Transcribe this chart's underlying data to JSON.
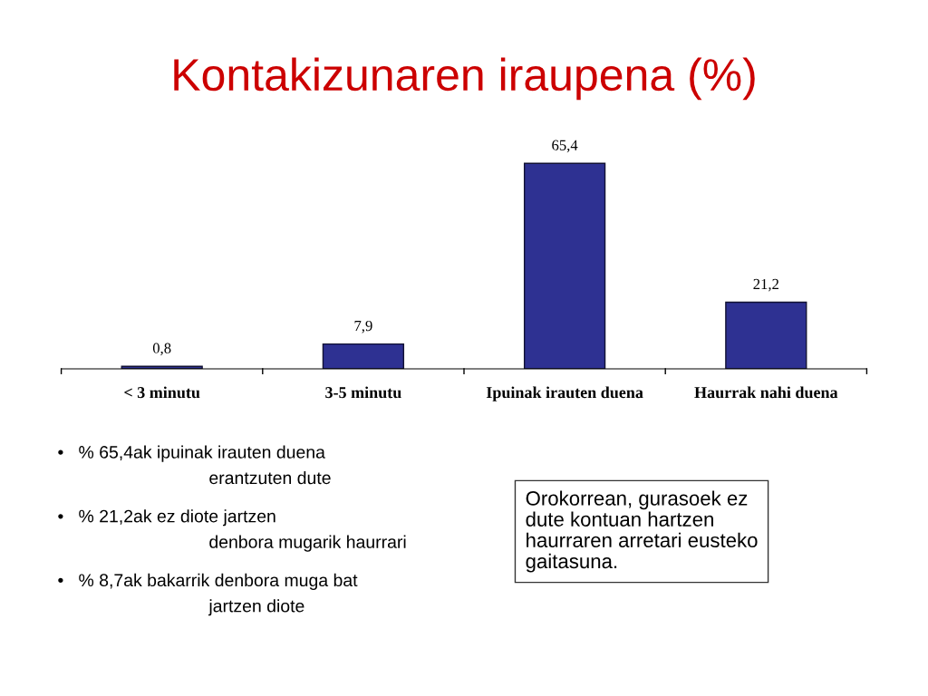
{
  "chart_data": {
    "type": "bar",
    "title": "Kontakizunaren iraupena (%)",
    "categories": [
      "< 3 minutu",
      "3-5 minutu",
      "Ipuinak irauten duena",
      "Haurrak nahi duena"
    ],
    "values": [
      0.8,
      7.9,
      65.4,
      21.2
    ],
    "value_labels": [
      "0,8",
      "7,9",
      "65,4",
      "21,2"
    ],
    "color": "#2e3192",
    "grid": false,
    "legend": false,
    "tick_labels": "x",
    "annotations": [
      "•   % 65,4ak ipuinak irauten duena\nerantzuten dute",
      "•   % 21,2ak ez diote jartzen\ndenbora mugarik haurrari",
      "•   % 8,7ak bakarrik denbora muga bat\njartzen diote",
      "Orokorrean, gurasoek ez\ndute kontuan hartzen\nhaurraren arretari eusteko\ngaitasuna."
    ]
  }
}
